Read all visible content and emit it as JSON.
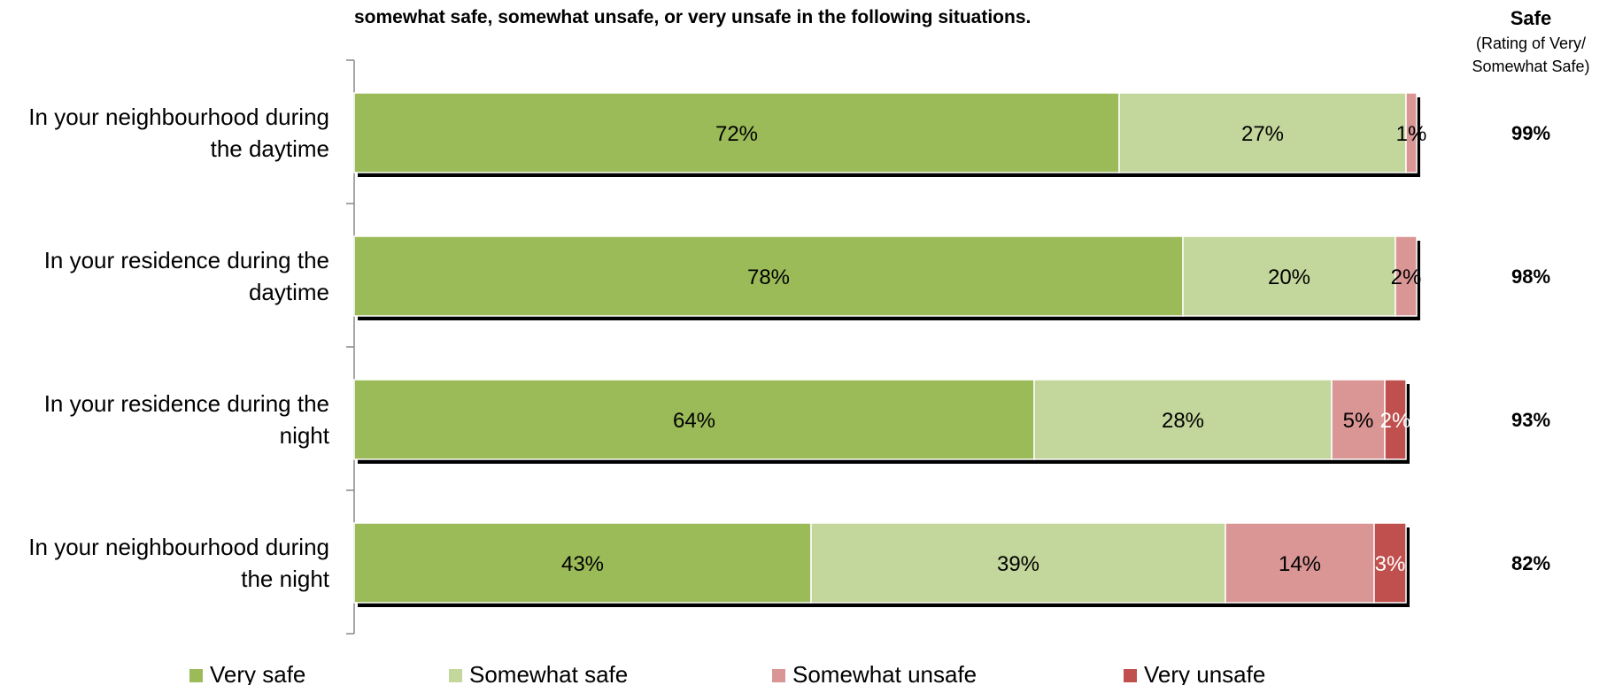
{
  "chart_data": {
    "type": "bar",
    "orientation": "horizontal",
    "stacked": true,
    "title": "somewhat safe, somewhat unsafe, or very unsafe in the following situations.",
    "categories": [
      "In your neighbourhood during the daytime",
      "In your residence during the daytime",
      "In your residence during the night",
      "In your neighbourhood during the night"
    ],
    "series": [
      {
        "name": "Very safe",
        "color": "#9BBB59",
        "values": [
          72,
          78,
          64,
          43
        ],
        "labels": [
          "72%",
          "78%",
          "64%",
          "43%"
        ]
      },
      {
        "name": "Somewhat safe",
        "color": "#C3D69B",
        "values": [
          27,
          20,
          28,
          39
        ],
        "labels": [
          "27%",
          "20%",
          "28%",
          "39%"
        ]
      },
      {
        "name": "Somewhat unsafe",
        "color": "#D99694",
        "values": [
          1,
          2,
          5,
          14
        ],
        "labels": [
          "1%",
          "2%",
          "5%",
          "14%"
        ]
      },
      {
        "name": "Very unsafe",
        "color": "#C0504D",
        "values": [
          0,
          0,
          2,
          3
        ],
        "labels": [
          "",
          "",
          "2%",
          "3%"
        ]
      }
    ],
    "xlim": [
      0,
      100
    ],
    "legend_position": "bottom",
    "right_column": {
      "header": "Safe",
      "subheader_lines": [
        "(Rating of Very/",
        "Somewhat Safe)"
      ],
      "values": [
        "99%",
        "98%",
        "93%",
        "82%"
      ]
    }
  }
}
